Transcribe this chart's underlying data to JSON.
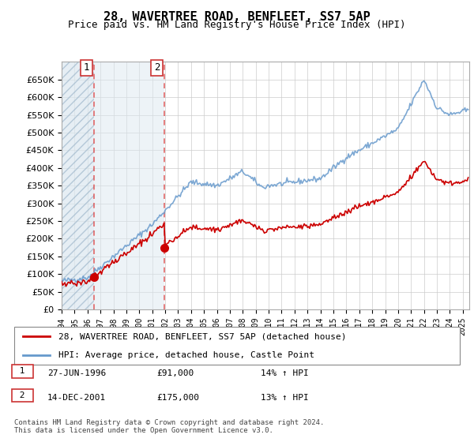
{
  "title": "28, WAVERTREE ROAD, BENFLEET, SS7 5AP",
  "subtitle": "Price paid vs. HM Land Registry's House Price Index (HPI)",
  "legend_line1": "28, WAVERTREE ROAD, BENFLEET, SS7 5AP (detached house)",
  "legend_line2": "HPI: Average price, detached house, Castle Point",
  "transaction1_label": "1",
  "transaction1_date": "27-JUN-1996",
  "transaction1_price": "£91,000",
  "transaction1_hpi": "14% ↑ HPI",
  "transaction1_year": 1996.49,
  "transaction1_value": 91000,
  "transaction2_label": "2",
  "transaction2_date": "14-DEC-2001",
  "transaction2_price": "£175,000",
  "transaction2_hpi": "13% ↑ HPI",
  "transaction2_year": 2001.95,
  "transaction2_value": 175000,
  "footnote": "Contains HM Land Registry data © Crown copyright and database right 2024.\nThis data is licensed under the Open Government Licence v3.0.",
  "hatch_color": "#c8d8e8",
  "shade_color": "#dce8f0",
  "red_line_color": "#cc0000",
  "blue_line_color": "#6699cc",
  "dashed_line_color": "#dd4444",
  "grid_color": "#cccccc",
  "ylim": [
    0,
    700000
  ],
  "xlim_start": 1994,
  "xlim_end": 2025.5,
  "background_color": "#ffffff"
}
